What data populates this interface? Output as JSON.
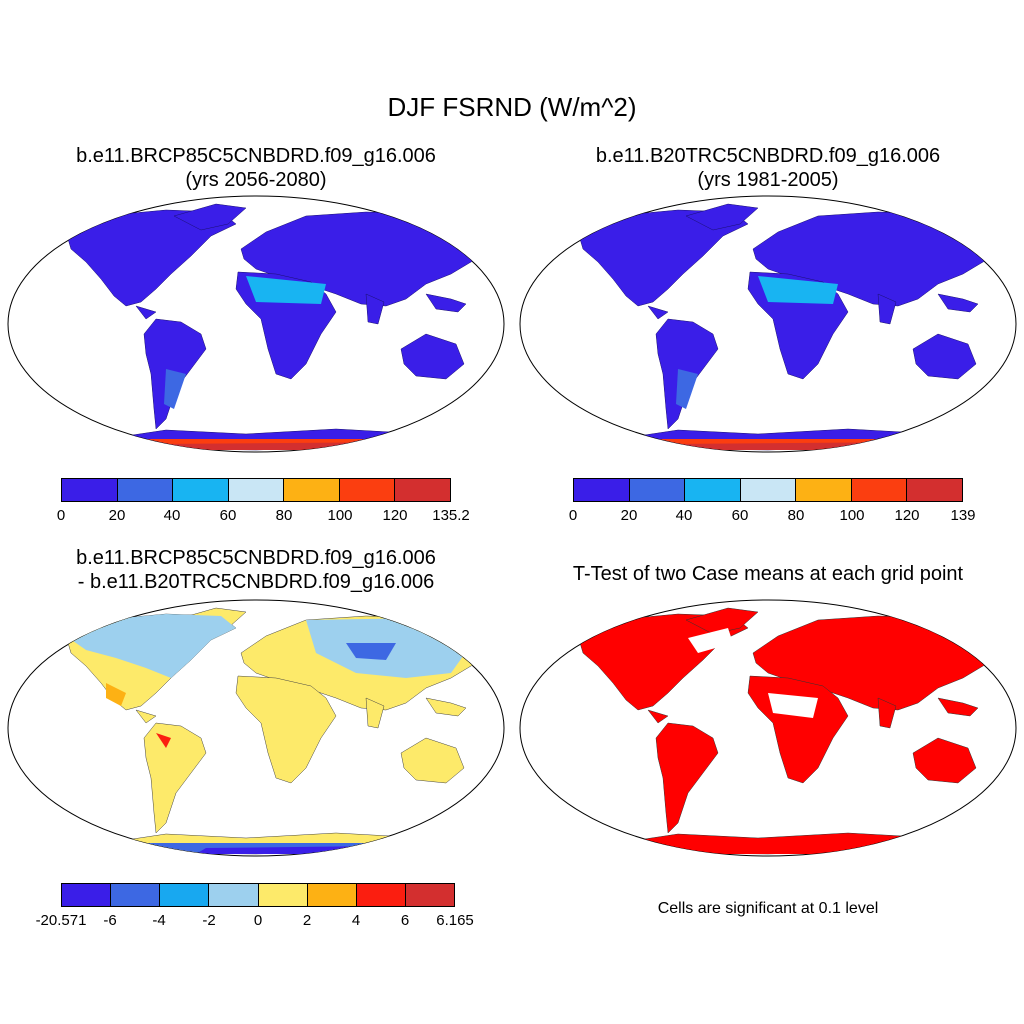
{
  "title": "DJF FSRND (W/m^2)",
  "panels": [
    {
      "title_line1": "b.e11.BRCP85C5CNBDRD.f09_g16.006",
      "title_line2": "(yrs 2056-2080)",
      "colorbar": {
        "labels": [
          "0",
          "20",
          "40",
          "60",
          "80",
          "100",
          "120",
          "135.2"
        ],
        "colors": [
          "#3a1ee8",
          "#3d68e3",
          "#18b4f2",
          "#c9e6f5",
          "#fdb114",
          "#fb3e10",
          "#d32f2f"
        ]
      }
    },
    {
      "title_line1": "b.e11.B20TRC5CNBDRD.f09_g16.006",
      "title_line2": "(yrs 1981-2005)",
      "colorbar": {
        "labels": [
          "0",
          "20",
          "40",
          "60",
          "80",
          "100",
          "120",
          "139"
        ],
        "colors": [
          "#3a1ee8",
          "#3d68e3",
          "#18b4f2",
          "#c9e6f5",
          "#fdb114",
          "#fb3e10",
          "#d32f2f"
        ]
      }
    },
    {
      "title_line1": "b.e11.BRCP85C5CNBDRD.f09_g16.006",
      "title_line2": "- b.e11.B20TRC5CNBDRD.f09_g16.006",
      "colorbar": {
        "labels": [
          "-20.571",
          "-6",
          "-4",
          "-2",
          "0",
          "2",
          "4",
          "6",
          "6.165"
        ],
        "colors": [
          "#3a1ee8",
          "#3d68e3",
          "#18a8f0",
          "#9dd0ee",
          "#fdea6a",
          "#fdb114",
          "#fb1e10",
          "#d32f2f"
        ]
      }
    },
    {
      "title_line1": "T-Test of two Case means at each grid point",
      "note": "Cells are significant at 0.1 level",
      "color": "#ff0000"
    }
  ]
}
